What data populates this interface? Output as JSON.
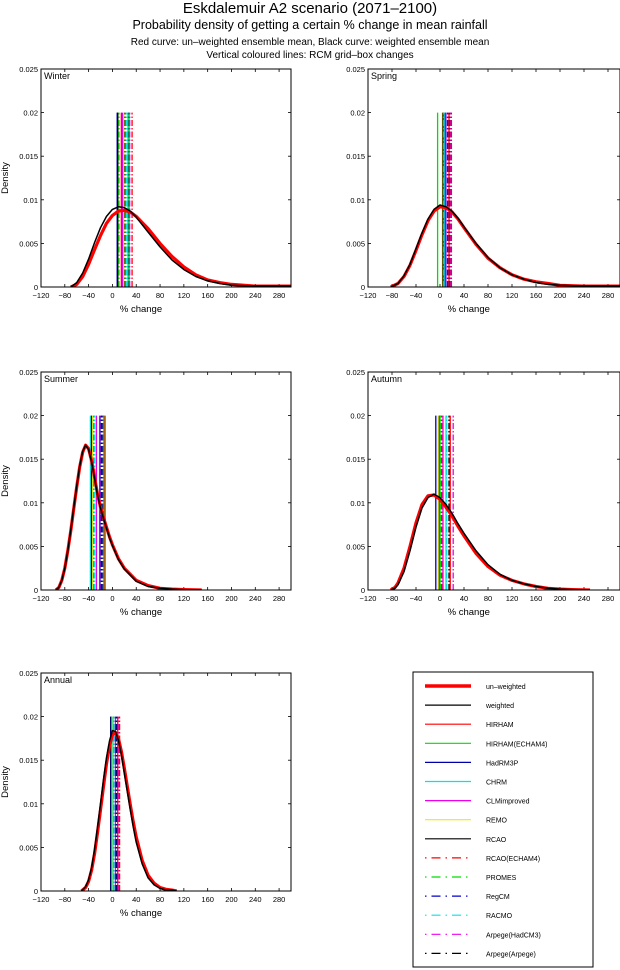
{
  "titles": {
    "main": "Eskdalemuir A2 scenario (2071–2100)",
    "sub": "Probability density of getting a certain % change in mean rainfall",
    "line3": "Red curve: un–weighted ensemble mean, Black curve: weighted ensemble mean",
    "line4": "Vertical coloured lines: RCM grid–box changes"
  },
  "chart_data": [
    {
      "type": "line",
      "title": "Winter",
      "xlabel": "% change",
      "ylabel": "Density",
      "xlim": [
        -120,
        300
      ],
      "ylim": [
        0,
        0.025
      ],
      "xticks": [
        -120,
        -80,
        -40,
        0,
        40,
        80,
        120,
        160,
        200,
        240,
        280
      ],
      "yticks": [
        0,
        0.005,
        0.01,
        0.015,
        0.02,
        0.025
      ],
      "series": [
        {
          "name": "un-weighted",
          "x": [
            -70,
            -60,
            -50,
            -40,
            -30,
            -20,
            -10,
            0,
            10,
            20,
            30,
            40,
            60,
            80,
            100,
            120,
            140,
            160,
            180,
            200,
            240,
            300
          ],
          "y": [
            0,
            0.0003,
            0.0012,
            0.0026,
            0.0043,
            0.0059,
            0.0073,
            0.0082,
            0.0087,
            0.0088,
            0.0086,
            0.0081,
            0.0067,
            0.005,
            0.0035,
            0.0023,
            0.0014,
            0.0008,
            0.0005,
            0.0003,
            0.0001,
            0.0001
          ]
        },
        {
          "name": "weighted",
          "x": [
            -70,
            -60,
            -50,
            -40,
            -30,
            -20,
            -10,
            0,
            10,
            20,
            30,
            40,
            60,
            80,
            100,
            120,
            140,
            160,
            180,
            200,
            240,
            300
          ],
          "y": [
            0,
            0.0005,
            0.0016,
            0.0032,
            0.0051,
            0.0068,
            0.0081,
            0.0089,
            0.0092,
            0.0091,
            0.0087,
            0.008,
            0.0063,
            0.0046,
            0.0031,
            0.002,
            0.0012,
            0.0007,
            0.0004,
            0.0002,
            0.0001,
            0.0001
          ]
        }
      ],
      "rcm_lines": [
        {
          "name": "HadRM3P",
          "x": 8
        },
        {
          "name": "RCAO",
          "x": 9
        },
        {
          "name": "PROMES",
          "x": 11
        },
        {
          "name": "HIRHAM",
          "x": 15
        },
        {
          "name": "CLMimproved",
          "x": 17
        },
        {
          "name": "Arpege(Arpege)",
          "x": 21
        },
        {
          "name": "RACMO",
          "x": 24
        },
        {
          "name": "CHRM",
          "x": 26
        },
        {
          "name": "RegCM",
          "x": 27
        },
        {
          "name": "HIRHAM(ECHAM4)",
          "x": 28
        },
        {
          "name": "Arpege(HadCM3)",
          "x": 29
        },
        {
          "name": "RCAO(ECHAM4)",
          "x": 33
        },
        {
          "name": "REMO",
          "x": 19
        }
      ]
    },
    {
      "type": "line",
      "title": "Spring",
      "xlabel": "% change",
      "ylabel": "",
      "xlim": [
        -120,
        300
      ],
      "ylim": [
        0,
        0.025
      ],
      "xticks": [
        -120,
        -80,
        -40,
        0,
        40,
        80,
        120,
        160,
        200,
        240,
        280
      ],
      "yticks": [
        0,
        0.005,
        0.01,
        0.015,
        0.02,
        0.025
      ],
      "series": [
        {
          "name": "un-weighted",
          "x": [
            -82,
            -70,
            -60,
            -50,
            -40,
            -30,
            -20,
            -10,
            0,
            10,
            20,
            30,
            40,
            60,
            80,
            100,
            120,
            140,
            160,
            180,
            200,
            240,
            300
          ],
          "y": [
            0,
            0.0004,
            0.0012,
            0.0025,
            0.0042,
            0.006,
            0.0076,
            0.0087,
            0.0092,
            0.0091,
            0.0086,
            0.0078,
            0.0068,
            0.0049,
            0.0033,
            0.0022,
            0.0014,
            0.0009,
            0.0006,
            0.0004,
            0.0002,
            0.0001,
            0.0001
          ]
        },
        {
          "name": "weighted",
          "x": [
            -82,
            -70,
            -60,
            -50,
            -40,
            -30,
            -20,
            -10,
            0,
            10,
            20,
            30,
            40,
            60,
            80,
            100,
            120,
            140,
            160,
            180,
            200,
            240,
            300
          ],
          "y": [
            0,
            0.0004,
            0.0013,
            0.0026,
            0.0044,
            0.0062,
            0.0078,
            0.0089,
            0.0094,
            0.0092,
            0.0087,
            0.0079,
            0.0069,
            0.005,
            0.0034,
            0.0022,
            0.0014,
            0.0009,
            0.0005,
            0.0003,
            0.0002,
            0.0001,
            0.0001
          ]
        }
      ],
      "rcm_lines": [
        {
          "name": "HIRHAM(ECHAM4)",
          "x": -4
        },
        {
          "name": "REMO",
          "x": 4
        },
        {
          "name": "RCAO",
          "x": 5
        },
        {
          "name": "PROMES",
          "x": 6
        },
        {
          "name": "CHRM",
          "x": 7
        },
        {
          "name": "HadRM3P",
          "x": 9
        },
        {
          "name": "CLMimproved",
          "x": 10
        },
        {
          "name": "RACMO",
          "x": 12
        },
        {
          "name": "RegCM",
          "x": 13
        },
        {
          "name": "HIRHAM",
          "x": 15
        },
        {
          "name": "Arpege(Arpege)",
          "x": 17
        },
        {
          "name": "Arpege(HadCM3)",
          "x": 18
        },
        {
          "name": "RCAO(ECHAM4)",
          "x": 19
        }
      ]
    },
    {
      "type": "line",
      "title": "Summer",
      "xlabel": "% change",
      "ylabel": "Density",
      "xlim": [
        -120,
        300
      ],
      "ylim": [
        0,
        0.025
      ],
      "xticks": [
        -120,
        -80,
        -40,
        0,
        40,
        80,
        120,
        160,
        200,
        240,
        280
      ],
      "yticks": [
        0,
        0.005,
        0.01,
        0.015,
        0.02,
        0.025
      ],
      "series": [
        {
          "name": "un-weighted",
          "x": [
            -95,
            -90,
            -85,
            -80,
            -75,
            -70,
            -65,
            -60,
            -55,
            -50,
            -45,
            -40,
            -35,
            -30,
            -25,
            -20,
            -15,
            -10,
            -5,
            0,
            10,
            20,
            40,
            60,
            80,
            100,
            120,
            150
          ],
          "y": [
            0,
            0.0003,
            0.0011,
            0.0025,
            0.0045,
            0.0068,
            0.0093,
            0.0118,
            0.0141,
            0.0158,
            0.0166,
            0.0162,
            0.0148,
            0.0129,
            0.011,
            0.0095,
            0.0083,
            0.0072,
            0.0061,
            0.0052,
            0.0036,
            0.0025,
            0.0011,
            0.0005,
            0.0002,
            0.0001,
            5e-05,
            0
          ]
        },
        {
          "name": "weighted",
          "x": [
            -95,
            -90,
            -85,
            -80,
            -75,
            -70,
            -65,
            -60,
            -55,
            -50,
            -45,
            -40,
            -35,
            -30,
            -25,
            -20,
            -15,
            -10,
            -5,
            0,
            10,
            20,
            40,
            60,
            80,
            100,
            120,
            150
          ],
          "y": [
            0,
            0.0003,
            0.0011,
            0.0025,
            0.0045,
            0.0069,
            0.0094,
            0.0119,
            0.0142,
            0.0159,
            0.0166,
            0.0161,
            0.0147,
            0.0128,
            0.0109,
            0.0094,
            0.0082,
            0.0071,
            0.006,
            0.0051,
            0.0035,
            0.0024,
            0.001,
            0.0004,
            0.0002,
            0.0001,
            4e-05,
            0
          ]
        }
      ],
      "rcm_lines": [
        {
          "name": "CHRM",
          "x": -37
        },
        {
          "name": "RCAO",
          "x": -35
        },
        {
          "name": "REMO",
          "x": -33
        },
        {
          "name": "RCAO(ECHAM4)",
          "x": -31
        },
        {
          "name": "RACMO",
          "x": -30
        },
        {
          "name": "CLMimproved",
          "x": -27
        },
        {
          "name": "HadRM3P",
          "x": -21
        },
        {
          "name": "Arpege(HadCM3)",
          "x": -19
        },
        {
          "name": "Arpege(Arpege)",
          "x": -18
        },
        {
          "name": "RegCM",
          "x": -16
        },
        {
          "name": "PROMES",
          "x": -15
        },
        {
          "name": "HIRHAM",
          "x": -14
        },
        {
          "name": "HIRHAM(ECHAM4)",
          "x": -12
        }
      ]
    },
    {
      "type": "line",
      "title": "Autumn",
      "xlabel": "% change",
      "ylabel": "",
      "xlim": [
        -120,
        300
      ],
      "ylim": [
        0,
        0.025
      ],
      "xticks": [
        -120,
        -80,
        -40,
        0,
        40,
        80,
        120,
        160,
        200,
        240,
        280
      ],
      "yticks": [
        0,
        0.005,
        0.01,
        0.015,
        0.02,
        0.025
      ],
      "series": [
        {
          "name": "un-weighted",
          "x": [
            -82,
            -75,
            -70,
            -60,
            -50,
            -40,
            -30,
            -20,
            -10,
            0,
            10,
            20,
            30,
            40,
            60,
            80,
            100,
            120,
            140,
            160,
            180,
            200,
            220,
            250
          ],
          "y": [
            0,
            0.0003,
            0.0008,
            0.0025,
            0.005,
            0.0077,
            0.0098,
            0.0108,
            0.0109,
            0.0104,
            0.0095,
            0.0085,
            0.0073,
            0.0062,
            0.0042,
            0.0027,
            0.0017,
            0.0011,
            0.0007,
            0.0004,
            0.0002,
            0.0001,
            5e-05,
            0
          ]
        },
        {
          "name": "weighted",
          "x": [
            -82,
            -75,
            -70,
            -60,
            -50,
            -40,
            -30,
            -20,
            -10,
            0,
            10,
            20,
            30,
            40,
            60,
            80,
            100,
            120,
            140,
            160,
            180,
            200,
            220,
            250
          ],
          "y": [
            0,
            0.0002,
            0.0006,
            0.0021,
            0.0045,
            0.0072,
            0.0094,
            0.0106,
            0.011,
            0.0106,
            0.0098,
            0.0088,
            0.0076,
            0.0065,
            0.0045,
            0.0029,
            0.0018,
            0.0011,
            0.0007,
            0.0004,
            0.0002,
            0.0001,
            5e-05,
            0
          ]
        }
      ],
      "rcm_lines": [
        {
          "name": "HadRM3P",
          "x": -7
        },
        {
          "name": "REMO",
          "x": -3
        },
        {
          "name": "RCAO",
          "x": -1
        },
        {
          "name": "RegCM",
          "x": 1
        },
        {
          "name": "PROMES",
          "x": 2
        },
        {
          "name": "RCAO(ECHAM4)",
          "x": 3
        },
        {
          "name": "CLMimproved",
          "x": 5
        },
        {
          "name": "CHRM",
          "x": 10
        },
        {
          "name": "RACMO",
          "x": 11
        },
        {
          "name": "Arpege(Arpege)",
          "x": 15
        },
        {
          "name": "HIRHAM",
          "x": 17
        },
        {
          "name": "Arpege(HadCM3)",
          "x": 22
        },
        {
          "name": "HIRHAM(ECHAM4)",
          "x": 0
        }
      ]
    },
    {
      "type": "line",
      "title": "Annual",
      "xlabel": "% change",
      "ylabel": "Density",
      "xlim": [
        -120,
        300
      ],
      "ylim": [
        0,
        0.025
      ],
      "xticks": [
        -120,
        -80,
        -40,
        0,
        40,
        80,
        120,
        160,
        200,
        240,
        280
      ],
      "yticks": [
        0,
        0.005,
        0.01,
        0.015,
        0.02,
        0.025
      ],
      "series": [
        {
          "name": "un-weighted",
          "x": [
            -52,
            -45,
            -40,
            -35,
            -30,
            -25,
            -20,
            -15,
            -10,
            -5,
            0,
            5,
            10,
            15,
            20,
            25,
            30,
            35,
            40,
            50,
            60,
            70,
            80,
            90,
            100,
            108
          ],
          "y": [
            0,
            0.0004,
            0.0011,
            0.0024,
            0.0043,
            0.0067,
            0.0093,
            0.012,
            0.0146,
            0.0166,
            0.0179,
            0.0182,
            0.0175,
            0.016,
            0.0141,
            0.012,
            0.0099,
            0.0079,
            0.0062,
            0.0035,
            0.0018,
            0.0009,
            0.0004,
            0.0002,
            0.0001,
            0
          ]
        },
        {
          "name": "weighted",
          "x": [
            -52,
            -45,
            -40,
            -35,
            -30,
            -25,
            -20,
            -15,
            -10,
            -5,
            0,
            5,
            10,
            15,
            20,
            25,
            30,
            35,
            40,
            50,
            60,
            70,
            80,
            90,
            100,
            108
          ],
          "y": [
            0,
            0.0005,
            0.0013,
            0.0027,
            0.0048,
            0.0073,
            0.01,
            0.0128,
            0.0153,
            0.0172,
            0.0184,
            0.0183,
            0.0173,
            0.0156,
            0.0135,
            0.0114,
            0.0093,
            0.0073,
            0.0056,
            0.0031,
            0.0015,
            0.0007,
            0.0003,
            0.0001,
            0.0001,
            0
          ]
        }
      ],
      "rcm_lines": [
        {
          "name": "HadRM3P",
          "x": -3
        },
        {
          "name": "RCAO",
          "x": -2
        },
        {
          "name": "HIRHAM(ECHAM4)",
          "x": -1
        },
        {
          "name": "REMO",
          "x": 0
        },
        {
          "name": "CHRM",
          "x": 1
        },
        {
          "name": "PROMES",
          "x": 2
        },
        {
          "name": "RACMO",
          "x": 3
        },
        {
          "name": "CLMimproved",
          "x": 5
        },
        {
          "name": "RegCM",
          "x": 6
        },
        {
          "name": "Arpege(Arpege)",
          "x": 8
        },
        {
          "name": "HIRHAM",
          "x": 9
        },
        {
          "name": "Arpege(HadCM3)",
          "x": 11
        },
        {
          "name": "RCAO(ECHAM4)",
          "x": 12
        }
      ]
    }
  ],
  "legend": {
    "items": [
      {
        "label": "un–weighted",
        "color": "#ff0000",
        "style": "thick"
      },
      {
        "label": "weighted",
        "color": "#000000",
        "style": "solid"
      },
      {
        "label": "HIRHAM",
        "color": "#ff0000",
        "style": "solid"
      },
      {
        "label": "HIRHAM(ECHAM4)",
        "color": "#00dd00",
        "style": "solid"
      },
      {
        "label": "HadRM3P",
        "color": "#0000aa",
        "style": "solid"
      },
      {
        "label": "CHRM",
        "color": "#00e5e5",
        "style": "solid"
      },
      {
        "label": "CLMimproved",
        "color": "#ee00ee",
        "style": "solid"
      },
      {
        "label": "REMO",
        "color": "#eeee00",
        "style": "solid"
      },
      {
        "label": "RCAO",
        "color": "#000000",
        "style": "solid"
      },
      {
        "label": "RCAO(ECHAM4)",
        "color": "#ff0000",
        "style": "dashdot"
      },
      {
        "label": "PROMES",
        "color": "#00dd00",
        "style": "dashdot"
      },
      {
        "label": "RegCM",
        "color": "#0000cc",
        "style": "dashdot"
      },
      {
        "label": "RACMO",
        "color": "#00e5e5",
        "style": "dashdot"
      },
      {
        "label": "Arpege(HadCM3)",
        "color": "#ee00ee",
        "style": "dashdot"
      },
      {
        "label": "Arpege(Arpege)",
        "color": "#000000",
        "style": "dashdot"
      }
    ]
  }
}
